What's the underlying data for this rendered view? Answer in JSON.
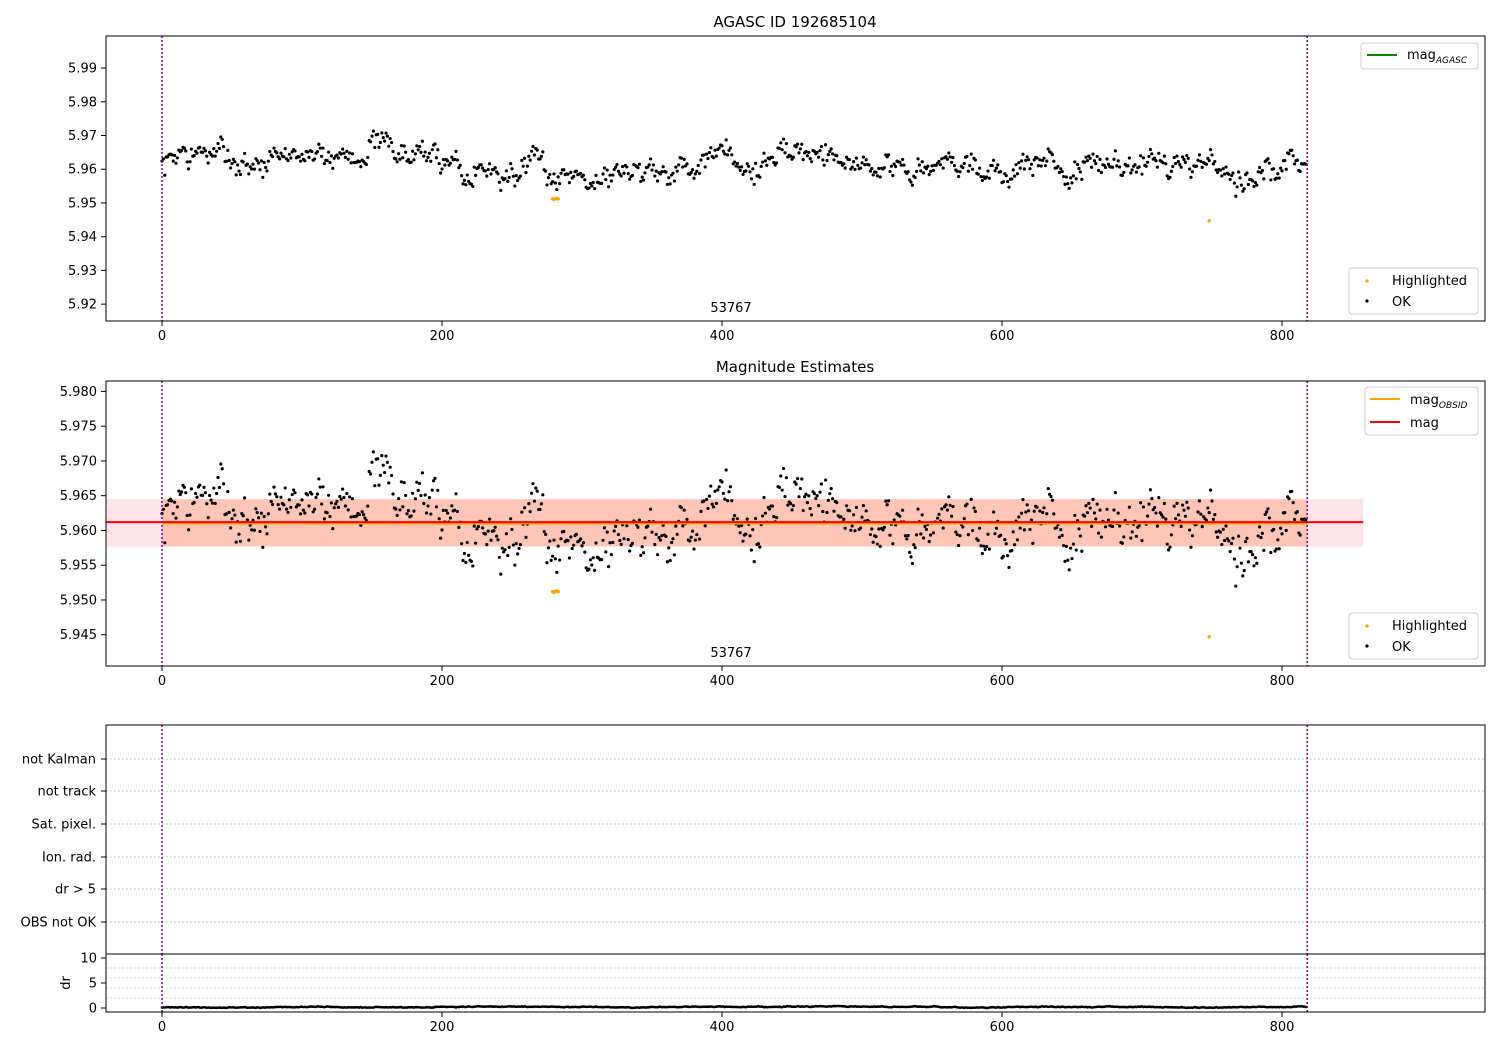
{
  "chart_data": [
    {
      "type": "scatter",
      "title": "AGASC ID 192685104",
      "annotation": "53767",
      "xlim": [
        -40,
        945
      ],
      "ylim": [
        5.915,
        5.9995
      ],
      "xticks": [
        0,
        200,
        400,
        600,
        800
      ],
      "yticks": [
        5.92,
        5.93,
        5.94,
        5.95,
        5.96,
        5.97,
        5.98,
        5.99
      ],
      "vlines": [
        0,
        818
      ],
      "vline_color": "#800080",
      "legend_lines": [
        {
          "label": "mag",
          "sub": "AGASC",
          "color": "#008000"
        }
      ],
      "legend_points": [
        {
          "label": "Highlighted",
          "color": "#ffa500"
        },
        {
          "label": "OK",
          "color": "#000000"
        }
      ],
      "series": [
        {
          "name": "OK",
          "color": "#000000",
          "n": 818,
          "center": 5.9615,
          "spread": 0.0032
        },
        {
          "name": "Highlighted",
          "color": "#ffa500",
          "points": [
            [
              279,
              5.9512
            ],
            [
              280,
              5.9511
            ],
            [
              281,
              5.9512
            ],
            [
              282,
              5.9513
            ],
            [
              283,
              5.9512
            ],
            [
              748,
              5.9447
            ]
          ]
        }
      ]
    },
    {
      "type": "scatter",
      "title": "Magnitude Estimates",
      "annotation": "53767",
      "xlim": [
        -40,
        945
      ],
      "ylim": [
        5.9405,
        5.9815
      ],
      "xticks": [
        0,
        200,
        400,
        600,
        800
      ],
      "yticks": [
        5.945,
        5.95,
        5.955,
        5.96,
        5.965,
        5.97,
        5.975,
        5.98
      ],
      "vlines": [
        0,
        818
      ],
      "vline_color": "#800080",
      "bands": [
        {
          "x": [
            -40,
            858
          ],
          "y": [
            5.9577,
            5.9645
          ],
          "color": "#ffc0cb",
          "opacity": 0.45
        },
        {
          "x": [
            0,
            818
          ],
          "y": [
            5.9577,
            5.9645
          ],
          "color": "#ffa07a",
          "opacity": 0.45
        }
      ],
      "lines": [
        {
          "name": "mag_OBSID",
          "x": [
            0,
            818
          ],
          "y": 5.961,
          "color": "#ffa500"
        },
        {
          "name": "mag",
          "x": [
            -40,
            858
          ],
          "y": 5.9612,
          "color": "#ff0000"
        }
      ],
      "legend_lines": [
        {
          "label": "mag",
          "sub": "OBSID",
          "color": "#ffa500"
        },
        {
          "label": "mag",
          "sub": "",
          "color": "#ff0000"
        }
      ],
      "legend_points": [
        {
          "label": "Highlighted",
          "color": "#ffa500"
        },
        {
          "label": "OK",
          "color": "#000000"
        }
      ]
    },
    {
      "type": "table",
      "xlim": [
        -40,
        945
      ],
      "xticks": [
        0,
        200,
        400,
        600,
        800
      ],
      "flag_labels": [
        "not Kalman",
        "not track",
        "Sat. pixel.",
        "Ion. rad.",
        "dr > 5",
        "OBS not OK"
      ],
      "vlines": [
        0,
        818
      ],
      "vline_color": "#800080"
    },
    {
      "type": "scatter",
      "ylabel": "dr",
      "xlim": [
        -40,
        945
      ],
      "ylim": [
        -0.8,
        10.8
      ],
      "xticks": [
        0,
        200,
        400,
        600,
        800
      ],
      "yticks": [
        0,
        5,
        10
      ],
      "vlines": [
        0,
        818
      ],
      "vline_color": "#800080",
      "series": [
        {
          "name": "dr",
          "color": "#000000",
          "n": 818,
          "center": 0.2,
          "spread": 0.08
        }
      ]
    }
  ]
}
